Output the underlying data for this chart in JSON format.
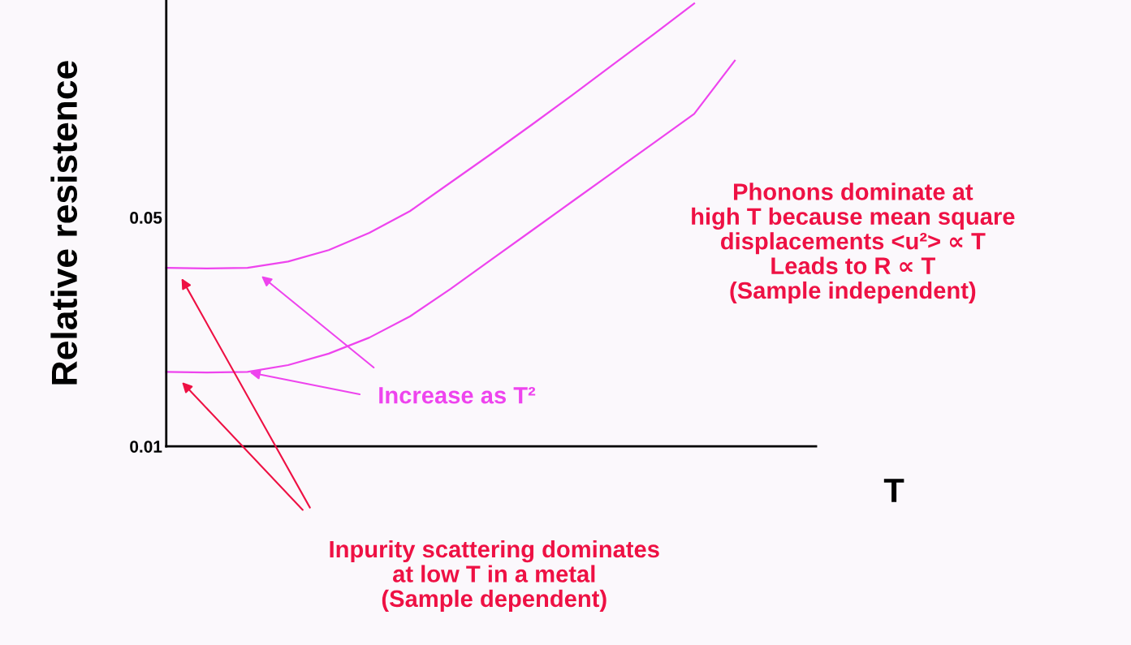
{
  "chart_data": {
    "type": "line",
    "ylabel": "Relative resistence",
    "xlabel": "T",
    "categories": [
      null,
      null,
      null,
      null,
      null,
      null,
      null,
      null,
      null,
      null,
      null,
      null,
      null,
      null,
      null,
      null,
      null
    ],
    "series": [
      {
        "color": "#ee44ee",
        "values": [
          0.0412,
          0.0411,
          0.0412,
          0.0423,
          0.0443,
          0.0473,
          0.0511,
          0.0561,
          0.0611,
          0.0662,
          0.0714,
          0.0767,
          0.082,
          0.0874,
          null,
          null,
          null
        ]
      },
      {
        "color": "#ee44ee",
        "values": [
          0.023,
          0.0229,
          0.023,
          0.0242,
          0.0262,
          0.029,
          0.0327,
          0.0375,
          0.0426,
          0.0477,
          0.0528,
          0.0579,
          0.063,
          0.0681,
          0.0774,
          null,
          null
        ]
      }
    ],
    "ylim": [
      0.01,
      0.088
    ],
    "yticks": [
      0.01,
      0.05
    ],
    "tick_labels": "y",
    "grid": false,
    "legend": false,
    "marker": "none",
    "line_style": "solid",
    "annotations": [
      "Phonons dominate at\nhigh T because mean square\ndisplacements <u²> ∝ T\nLeads to R ∝ T\n(Sample independent)",
      "Increase as T²",
      "Inpurity scattering dominates\nat low T in a metal\n(Sample dependent)"
    ]
  }
}
